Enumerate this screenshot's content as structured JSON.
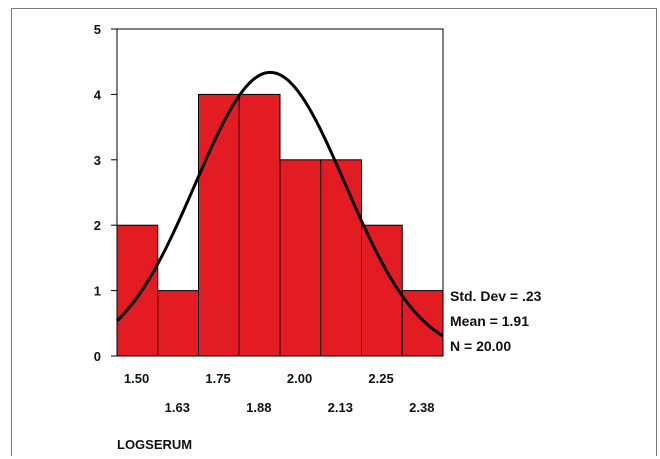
{
  "chart_data": {
    "type": "bar",
    "title": "",
    "xlabel": "LOGSERUM",
    "ylabel": "",
    "bin_edges": [
      1.44,
      1.565,
      1.69,
      1.815,
      1.94,
      2.065,
      2.19,
      2.315,
      2.44
    ],
    "values": [
      2,
      1,
      4,
      4,
      3,
      3,
      2,
      1
    ],
    "ylim": [
      0,
      5
    ],
    "y_ticks": [
      "0",
      "1",
      "2",
      "3",
      "4",
      "5"
    ],
    "x_ticks_row1": [
      {
        "label": "1.50",
        "value": 1.5
      },
      {
        "label": "1.75",
        "value": 1.75
      },
      {
        "label": "2.00",
        "value": 2.0
      },
      {
        "label": "2.25",
        "value": 2.25
      }
    ],
    "x_ticks_row2": [
      {
        "label": "1.63",
        "value": 1.625
      },
      {
        "label": "1.88",
        "value": 1.875
      },
      {
        "label": "2.13",
        "value": 2.125
      },
      {
        "label": "2.38",
        "value": 2.375
      }
    ],
    "normal_curve": {
      "mean": 1.91,
      "std": 0.23,
      "n": 20,
      "bin_width": 0.125
    },
    "bar_color": "#e31b23",
    "curve_color": "#000000",
    "stats": [
      "Std. Dev = .23",
      "Mean = 1.91",
      "N = 20.00"
    ],
    "grid": false
  }
}
